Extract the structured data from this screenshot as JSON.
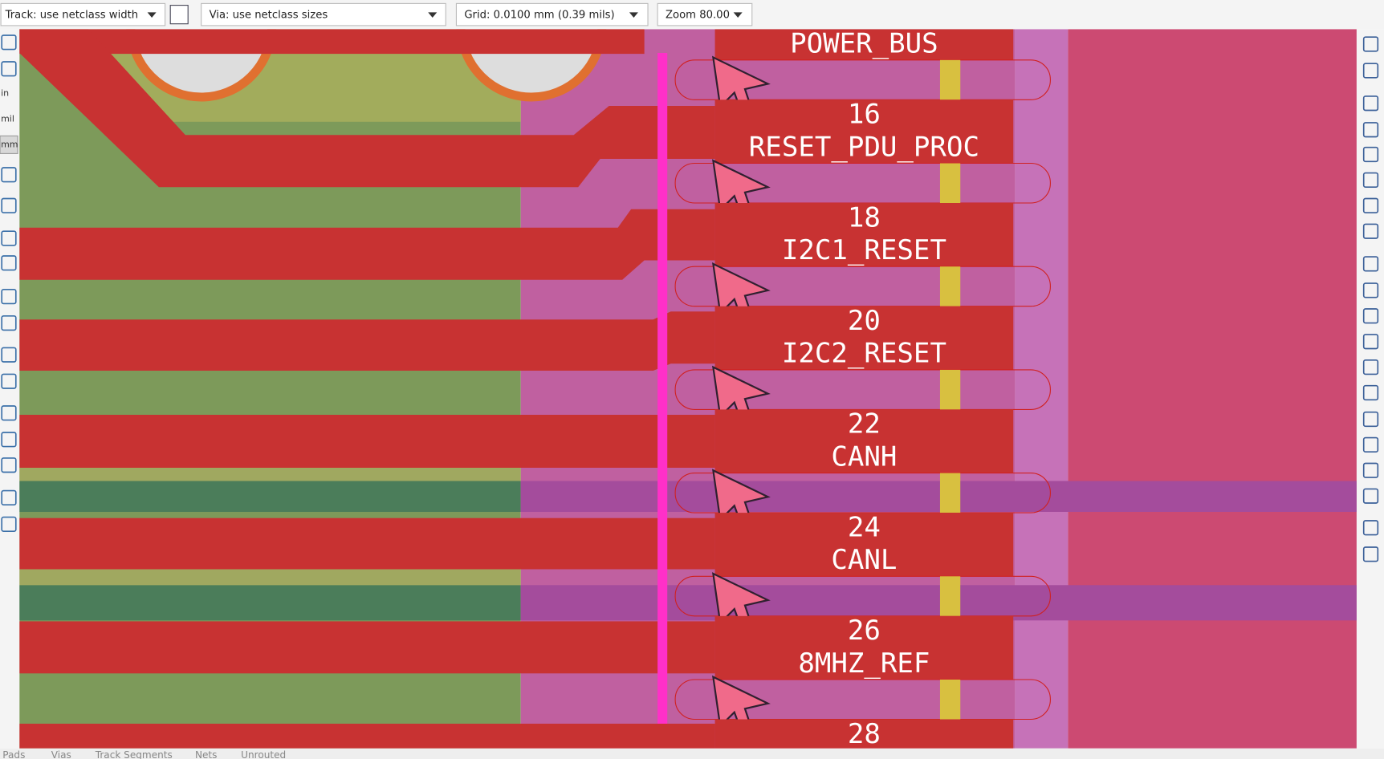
{
  "toolbar": {
    "track": "Track: use netclass width",
    "via": "Via: use netclass sizes",
    "grid": "Grid: 0.0100 mm (0.39 mils)",
    "zoom": "Zoom 80.00"
  },
  "units": [
    "in",
    "mil",
    "mm"
  ],
  "pads": [
    {
      "net": "POWER_BUS"
    },
    {
      "number": "16",
      "net": "RESET_PDU_PROC"
    },
    {
      "number": "18",
      "net": "I2C1_RESET"
    },
    {
      "number": "20",
      "net": "I2C2_RESET"
    },
    {
      "number": "22",
      "net": "CANH"
    },
    {
      "number": "24",
      "net": "CANL"
    },
    {
      "number": "26",
      "net": "8MHZ_REF"
    },
    {
      "number": "28"
    }
  ],
  "status": [
    "Pads",
    "Vias",
    "Track Segments",
    "Nets",
    "Unrouted"
  ]
}
